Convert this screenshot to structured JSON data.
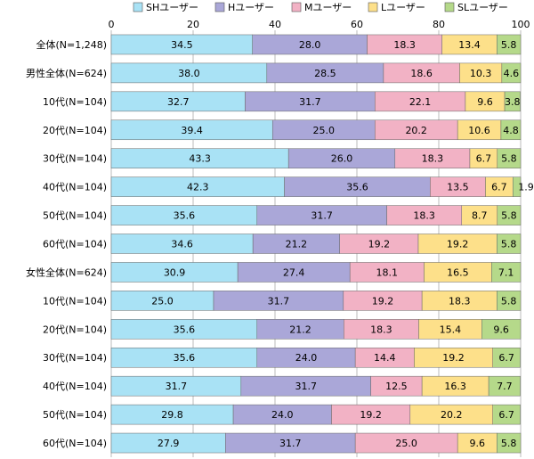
{
  "chart_data": {
    "type": "bar",
    "orientation": "horizontal",
    "stacked": true,
    "xlim": [
      0,
      100
    ],
    "x_ticks": [
      0,
      20,
      40,
      60,
      80,
      100
    ],
    "legend_position": "top",
    "categories": [
      "全体(N=1,248)",
      "男性全体(N=624)",
      "10代(N=104)",
      "20代(N=104)",
      "30代(N=104)",
      "40代(N=104)",
      "50代(N=104)",
      "60代(N=104)",
      "女性全体(N=624)",
      "10代(N=104)",
      "20代(N=104)",
      "30代(N=104)",
      "40代(N=104)",
      "50代(N=104)",
      "60代(N=104)"
    ],
    "series": [
      {
        "name": "SHユーザー",
        "color": "#a9e2f5",
        "values": [
          34.5,
          38.0,
          32.7,
          39.4,
          43.3,
          42.3,
          35.6,
          34.6,
          30.9,
          25.0,
          35.6,
          35.6,
          31.7,
          29.8,
          27.9
        ],
        "labels": [
          "34.5",
          "38.0",
          "32.7",
          "39.4",
          "43.3",
          "42.3",
          "35.6",
          "34.6",
          "30.9",
          "25.0",
          "35.6",
          "35.6",
          "31.7",
          "29.8",
          "27.9"
        ]
      },
      {
        "name": "Hユーザー",
        "color": "#aaa7d8",
        "values": [
          28.0,
          28.5,
          31.7,
          25.0,
          26.0,
          35.6,
          31.7,
          21.2,
          27.4,
          31.7,
          21.2,
          24.0,
          31.7,
          24.0,
          31.7
        ],
        "labels": [
          "28.0",
          "28.5",
          "31.7",
          "25.0",
          "26.0",
          "35.6",
          "31.7",
          "21.2",
          "27.4",
          "31.7",
          "21.2",
          "24.0",
          "31.7",
          "24.0",
          "31.7"
        ]
      },
      {
        "name": "Mユーザー",
        "color": "#f2b2c5",
        "values": [
          18.3,
          18.6,
          22.1,
          20.2,
          18.3,
          13.5,
          18.3,
          19.2,
          18.1,
          19.2,
          18.3,
          14.4,
          12.5,
          19.2,
          25.0
        ],
        "labels": [
          "18.3",
          "18.6",
          "22.1",
          "20.2",
          "18.3",
          "13.5",
          "18.3",
          "19.2",
          "18.1",
          "19.2",
          "18.3",
          "14.4",
          "12.5",
          "19.2",
          "25.0"
        ]
      },
      {
        "name": "Lユーザー",
        "color": "#fde08a",
        "values": [
          13.4,
          10.3,
          9.6,
          10.6,
          6.7,
          6.7,
          8.7,
          19.2,
          16.5,
          18.3,
          15.4,
          19.2,
          16.3,
          20.2,
          9.6
        ],
        "labels": [
          "13.4",
          "10.3",
          "9.6",
          "10.6",
          "6.7",
          "6.7",
          "8.7",
          "19.2",
          "16.5",
          "18.3",
          "15.4",
          "19.2",
          "16.3",
          "20.2",
          "9.6"
        ]
      },
      {
        "name": "SLユーザー",
        "color": "#b5d98a",
        "values": [
          5.8,
          4.6,
          3.8,
          4.8,
          5.8,
          1.9,
          5.8,
          5.8,
          7.1,
          5.8,
          9.6,
          6.7,
          7.7,
          6.7,
          5.8
        ],
        "labels": [
          "5.8",
          "4.6",
          "3.8",
          "4.8",
          "5.8",
          "1.9",
          "5.8",
          "5.8",
          "7.1",
          "5.8",
          "9.6",
          "6.7",
          "7.7",
          "6.7",
          "5.8"
        ]
      }
    ]
  }
}
